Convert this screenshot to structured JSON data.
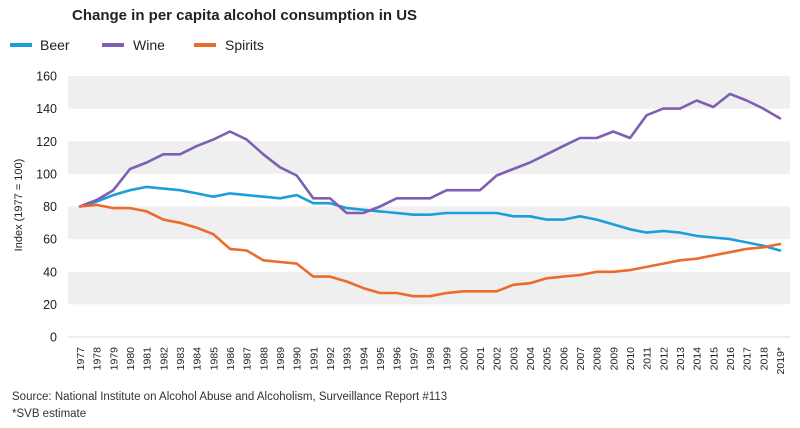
{
  "chart_data": {
    "type": "line",
    "title": "Change in per capita alcohol consumption in US",
    "ylabel": "Index (1977 = 100)",
    "xlabel": "",
    "ylim": [
      0,
      160
    ],
    "yticks": [
      0,
      20,
      40,
      60,
      80,
      100,
      120,
      140,
      160
    ],
    "grid": "alternating horizontal bands",
    "legend_position": "top-left",
    "categories": [
      "1977",
      "1978",
      "1979",
      "1980",
      "1981",
      "1982",
      "1983",
      "1984",
      "1985",
      "1986",
      "1987",
      "1988",
      "1989",
      "1990",
      "1991",
      "1992",
      "1993",
      "1994",
      "1995",
      "1996",
      "1997",
      "1998",
      "1999",
      "2000",
      "2001",
      "2002",
      "2003",
      "2004",
      "2005",
      "2006",
      "2007",
      "2008",
      "2009",
      "2010",
      "2011",
      "2012",
      "2013",
      "2014",
      "2015",
      "2016",
      "2017",
      "2018",
      "2019*"
    ],
    "series": [
      {
        "name": "Beer",
        "color": "#1a9fd9",
        "values": [
          80,
          83,
          87,
          90,
          92,
          91,
          90,
          88,
          86,
          88,
          87,
          86,
          85,
          87,
          82,
          82,
          79,
          78,
          77,
          76,
          75,
          75,
          76,
          76,
          76,
          76,
          74,
          74,
          72,
          72,
          74,
          72,
          69,
          66,
          64,
          65,
          64,
          62,
          61,
          60,
          58,
          56,
          53
        ]
      },
      {
        "name": "Wine",
        "color": "#7e5fb3",
        "values": [
          80,
          84,
          90,
          103,
          107,
          112,
          112,
          117,
          121,
          126,
          121,
          112,
          104,
          99,
          85,
          85,
          76,
          76,
          80,
          85,
          85,
          85,
          90,
          90,
          90,
          99,
          103,
          107,
          112,
          117,
          122,
          122,
          126,
          122,
          136,
          140,
          140,
          145,
          141,
          149,
          145,
          140,
          134
        ]
      },
      {
        "name": "Spirits",
        "color": "#ec6a2c",
        "values": [
          80,
          81,
          79,
          79,
          77,
          72,
          70,
          67,
          63,
          54,
          53,
          47,
          46,
          45,
          37,
          37,
          34,
          30,
          27,
          27,
          25,
          25,
          27,
          28,
          28,
          28,
          32,
          33,
          36,
          37,
          38,
          40,
          40,
          41,
          43,
          45,
          47,
          48,
          50,
          52,
          54,
          55,
          57
        ]
      }
    ],
    "source": "Source: National Institute on Alcohol Abuse and Alcoholism, Surveillance Report #113",
    "footnote": "*SVB estimate"
  }
}
